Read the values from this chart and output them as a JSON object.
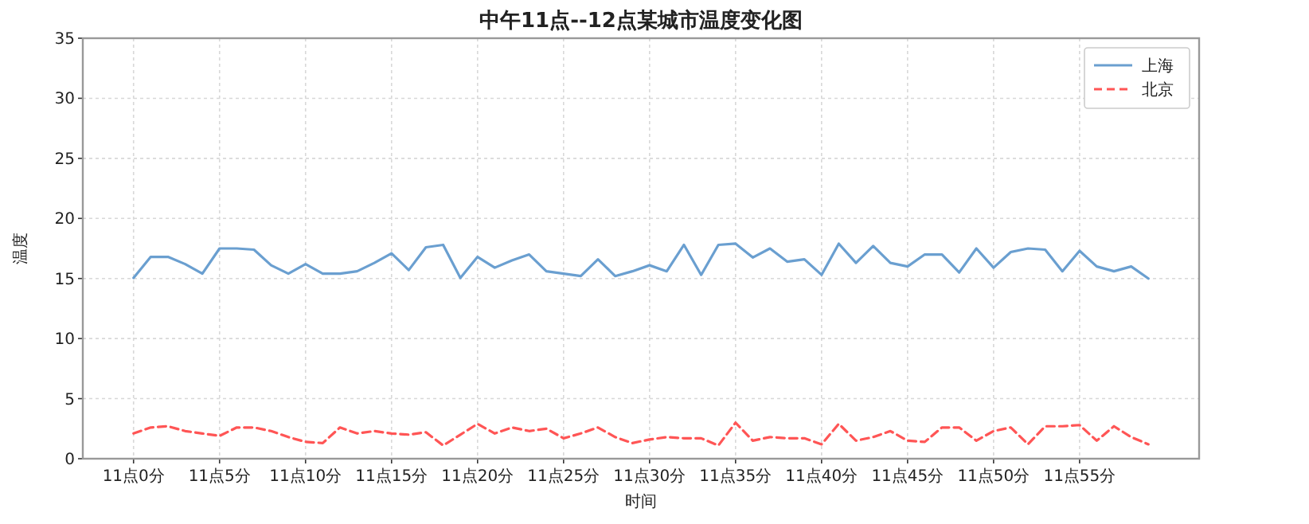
{
  "chart_data": {
    "type": "line",
    "title": "中午11点--12点某城市温度变化图",
    "xlabel": "时间",
    "ylabel": "温度",
    "categories": [
      "11点0分",
      null,
      null,
      null,
      null,
      "11点5分",
      null,
      null,
      null,
      null,
      "11点10分",
      null,
      null,
      null,
      null,
      "11点15分",
      null,
      null,
      null,
      null,
      "11点20分",
      null,
      null,
      null,
      null,
      "11点25分",
      null,
      null,
      null,
      null,
      "11点30分",
      null,
      null,
      null,
      null,
      "11点35分",
      null,
      null,
      null,
      null,
      "11点40分",
      null,
      null,
      null,
      null,
      "11点45分",
      null,
      null,
      null,
      null,
      "11点50分",
      null,
      null,
      null,
      null,
      "11点55分",
      null,
      null,
      null,
      null
    ],
    "series": [
      {
        "name": "上海",
        "color": "#6a9fd0",
        "line_style": "solid",
        "values": [
          15.05,
          16.8,
          16.8,
          16.2,
          15.4,
          17.5,
          17.5,
          17.4,
          16.1,
          15.4,
          16.2,
          15.4,
          15.4,
          15.6,
          16.3,
          17.1,
          15.7,
          17.6,
          17.8,
          15.05,
          16.8,
          15.9,
          16.5,
          17.0,
          15.6,
          15.4,
          15.2,
          16.6,
          15.2,
          15.6,
          16.1,
          15.6,
          17.8,
          15.3,
          17.8,
          17.9,
          16.75,
          17.5,
          16.4,
          16.6,
          15.3,
          17.9,
          16.3,
          17.7,
          16.3,
          16.0,
          17.0,
          17.0,
          15.5,
          17.5,
          15.9,
          17.2,
          17.5,
          17.4,
          15.6,
          17.3,
          16.0,
          15.6,
          16.0,
          15.0
        ]
      },
      {
        "name": "北京",
        "color": "#ff5555",
        "line_style": "dashed",
        "values": [
          2.1,
          2.6,
          2.7,
          2.3,
          2.1,
          1.9,
          2.6,
          2.6,
          2.3,
          1.8,
          1.4,
          1.3,
          2.6,
          2.1,
          2.3,
          2.1,
          2.0,
          2.2,
          1.1,
          2.0,
          2.9,
          2.1,
          2.6,
          2.3,
          2.5,
          1.7,
          2.1,
          2.6,
          1.8,
          1.3,
          1.6,
          1.8,
          1.7,
          1.7,
          1.1,
          3.0,
          1.5,
          1.8,
          1.7,
          1.7,
          1.2,
          2.9,
          1.5,
          1.8,
          2.3,
          1.5,
          1.4,
          2.6,
          2.6,
          1.5,
          2.3,
          2.6,
          1.2,
          2.7,
          2.7,
          2.8,
          1.5,
          2.7,
          1.8,
          1.2
        ]
      }
    ],
    "ylim": [
      0,
      35
    ],
    "yticks": [
      0,
      5,
      10,
      15,
      20,
      25,
      30,
      35
    ],
    "grid": true,
    "legend": "top right"
  }
}
